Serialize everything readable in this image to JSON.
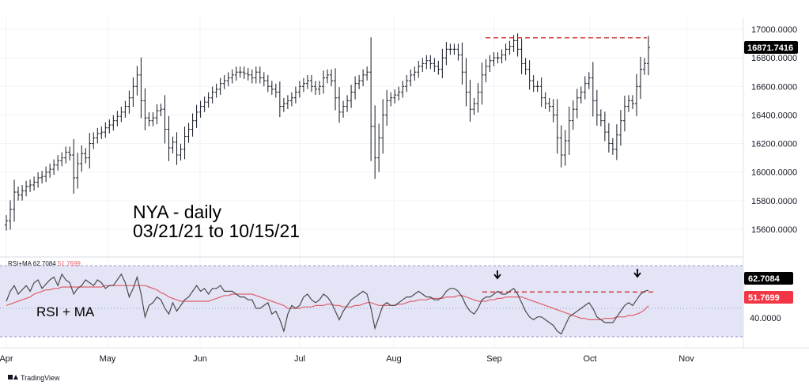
{
  "chart_data": [
    {
      "type": "ohlc",
      "instrument": "NYA",
      "interval": "daily",
      "annotation": [
        "NYA - daily",
        "03/21/21 to 10/15/21"
      ],
      "ylim": [
        15500,
        17100
      ],
      "yticks": [
        "17000.0000",
        "16800.0000",
        "16600.0000",
        "16400.0000",
        "16200.0000",
        "16000.0000",
        "15800.0000",
        "15600.0000"
      ],
      "ytick_values": [
        17000,
        16800,
        16600,
        16400,
        16200,
        16000,
        15800,
        15600
      ],
      "xticks": [
        "Apr",
        "May",
        "Jun",
        "Jul",
        "Aug",
        "Sep",
        "Oct",
        "Nov"
      ],
      "last_price_label": "16871.7416",
      "last_price": 16871.7416,
      "resistance_level": 16940,
      "resistance_style": "red dashed",
      "close_series": [
        15660,
        15740,
        15860,
        15840,
        15870,
        15900,
        15910,
        15930,
        15960,
        15970,
        16000,
        16020,
        16050,
        16080,
        16100,
        16140,
        16120,
        15960,
        16060,
        16130,
        16100,
        16200,
        16240,
        16270,
        16280,
        16310,
        16330,
        16360,
        16390,
        16420,
        16460,
        16520,
        16600,
        16680,
        16500,
        16380,
        16360,
        16380,
        16430,
        16440,
        16300,
        16170,
        16210,
        16120,
        16160,
        16250,
        16300,
        16360,
        16420,
        16460,
        16490,
        16520,
        16560,
        16580,
        16620,
        16640,
        16660,
        16680,
        16700,
        16700,
        16690,
        16680,
        16660,
        16700,
        16660,
        16640,
        16600,
        16580,
        16560,
        16460,
        16480,
        16500,
        16520,
        16560,
        16600,
        16620,
        16640,
        16600,
        16580,
        16600,
        16660,
        16680,
        16640,
        16520,
        16420,
        16460,
        16500,
        16560,
        16620,
        16640,
        16680,
        16700,
        16320,
        16100,
        16240,
        16400,
        16500,
        16520,
        16540,
        16560,
        16600,
        16640,
        16680,
        16700,
        16740,
        16760,
        16780,
        16760,
        16740,
        16720,
        16800,
        16860,
        16860,
        16860,
        16820,
        16700,
        16560,
        16440,
        16480,
        16560,
        16680,
        16740,
        16780,
        16800,
        16800,
        16820,
        16860,
        16880,
        16920,
        16860,
        16760,
        16720,
        16640,
        16600,
        16600,
        16520,
        16480,
        16460,
        16400,
        16240,
        16120,
        16220,
        16360,
        16440,
        16520,
        16560,
        16620,
        16660,
        16500,
        16400,
        16360,
        16280,
        16200,
        16160,
        16260,
        16360,
        16460,
        16500,
        16480,
        16600,
        16720,
        16760,
        16871.74
      ],
      "rsi_panel": {
        "legend": "RSI+MA 62.7084 51.7699",
        "rsi_label": "RSI + MA",
        "rsi_last": "62.7084",
        "ma_last": "51.7699",
        "ytick": "40.0000",
        "ylim": [
          20,
          84
        ],
        "band_upper": 80,
        "band_lower": 30,
        "mid": 50,
        "rsi_resistance": 61.5,
        "rsi_series": [
          55,
          62,
          66,
          60,
          63,
          66,
          62,
          68,
          70,
          64,
          67,
          70,
          72,
          66,
          74,
          70,
          68,
          60,
          64,
          66,
          70,
          68,
          66,
          70,
          68,
          64,
          66,
          66,
          70,
          74,
          68,
          58,
          64,
          72,
          60,
          44,
          52,
          54,
          58,
          56,
          50,
          46,
          54,
          48,
          52,
          56,
          58,
          62,
          66,
          62,
          64,
          60,
          64,
          64,
          66,
          62,
          62,
          62,
          60,
          58,
          58,
          56,
          56,
          50,
          50,
          52,
          54,
          46,
          48,
          42,
          34,
          46,
          52,
          50,
          52,
          58,
          60,
          56,
          54,
          56,
          60,
          58,
          54,
          48,
          42,
          48,
          52,
          56,
          58,
          60,
          62,
          60,
          50,
          36,
          44,
          52,
          54,
          52,
          52,
          54,
          56,
          58,
          58,
          60,
          62,
          60,
          58,
          58,
          56,
          56,
          58,
          62,
          64,
          64,
          62,
          58,
          52,
          48,
          46,
          50,
          56,
          58,
          58,
          60,
          62,
          60,
          60,
          62,
          64,
          60,
          54,
          48,
          44,
          42,
          44,
          44,
          42,
          40,
          38,
          34,
          32,
          38,
          44,
          46,
          48,
          50,
          52,
          54,
          50,
          44,
          42,
          40,
          40,
          40,
          44,
          48,
          52,
          54,
          52,
          56,
          60,
          62,
          62.71
        ],
        "ma_series": [
          52,
          53,
          54,
          55,
          56,
          57,
          58,
          60,
          61,
          62,
          63,
          63,
          64,
          64,
          65,
          65,
          65,
          65,
          65,
          65,
          65,
          65,
          65,
          65,
          65,
          66,
          66,
          66,
          66,
          66,
          66,
          66,
          66,
          66,
          66,
          66,
          65,
          64,
          63,
          61,
          60,
          58,
          57,
          56,
          55,
          55,
          55,
          55,
          55,
          55,
          55,
          55,
          56,
          57,
          58,
          59,
          59,
          60,
          60,
          60,
          60,
          60,
          60,
          59,
          58,
          57,
          56,
          55,
          54,
          53,
          52,
          50,
          50,
          50,
          50,
          51,
          51,
          51,
          52,
          52,
          52,
          53,
          53,
          52,
          52,
          51,
          51,
          51,
          52,
          52,
          53,
          54,
          54,
          53,
          52,
          52,
          52,
          52,
          52,
          53,
          53,
          54,
          55,
          55,
          56,
          56,
          56,
          57,
          57,
          57,
          57,
          58,
          58,
          58,
          59,
          59,
          58,
          57,
          56,
          55,
          55,
          55,
          56,
          56,
          57,
          57,
          58,
          58,
          58,
          58,
          58,
          57,
          56,
          55,
          54,
          53,
          52,
          51,
          50,
          49,
          48,
          47,
          46,
          45,
          44,
          43,
          43,
          42,
          42,
          42,
          42,
          43,
          43,
          43,
          44,
          44,
          44,
          45,
          45,
          46,
          47,
          49,
          51.77
        ]
      }
    }
  ],
  "branding": {
    "logo_icon": "tradingview-logo-icon",
    "logo_text": "TradingView"
  },
  "colors": {
    "candle": "#131722",
    "rsi_line": "#4a4a4a",
    "ma_line": "#e0606a",
    "rsi_band": "#e4e4f7",
    "resistance": "#d0312d",
    "price_badge": "#000000",
    "ma_badge": "#f23645"
  }
}
